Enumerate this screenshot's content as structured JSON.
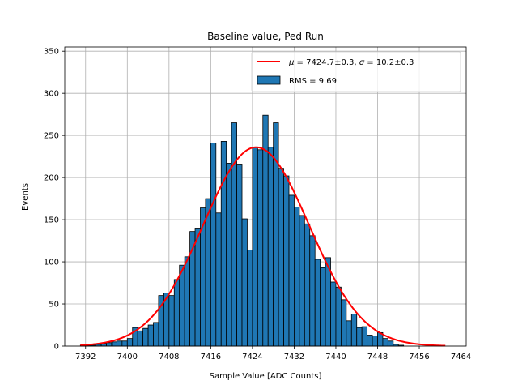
{
  "chart_data": {
    "type": "bar",
    "title": "Baseline value, Ped Run",
    "xlabel": "Sample Value [ADC Counts]",
    "ylabel": "Events",
    "xlim": [
      7388,
      7465
    ],
    "ylim": [
      0,
      355
    ],
    "xticks": [
      7392,
      7400,
      7408,
      7416,
      7424,
      7432,
      7440,
      7448,
      7456,
      7464
    ],
    "yticks": [
      0,
      50,
      100,
      150,
      200,
      250,
      300,
      350
    ],
    "grid": true,
    "legend_position": "top-right",
    "bar_color": "#1f77b4",
    "fit_color": "#ff0000",
    "bin_width": 1,
    "bins_start": 7391,
    "counts": [
      1,
      1,
      1,
      2,
      3,
      4,
      5,
      6,
      6,
      9,
      22,
      18,
      21,
      25,
      28,
      60,
      63,
      60,
      79,
      96,
      106,
      136,
      140,
      164,
      175,
      241,
      158,
      243,
      217,
      265,
      216,
      151,
      114,
      236,
      233,
      274,
      236,
      265,
      211,
      202,
      179,
      165,
      155,
      145,
      131,
      103,
      93,
      105,
      76,
      70,
      55,
      30,
      38,
      22,
      23,
      13,
      12,
      16,
      9,
      6,
      2,
      1
    ],
    "series": [
      {
        "name": "RMS = 9.69",
        "kind": "histogram",
        "rms": 9.69
      },
      {
        "name": "$\\mu = 7424.7\\pm0.3$, $\\sigma = 10.2\\pm0.3$",
        "kind": "gaussian_fit",
        "mu": 7424.7,
        "mu_err": 0.3,
        "sigma": 10.2,
        "sigma_err": 0.3,
        "amplitude": 236,
        "x_range": [
          7391,
          7461
        ]
      }
    ],
    "legend": {
      "fit_label_mu_sym": "μ",
      "fit_label_mu_val": " = 7424.7±0.3, ",
      "fit_label_sigma_sym": "σ",
      "fit_label_sigma_val": " = 10.2±0.3",
      "hist_label": "RMS = 9.69"
    }
  }
}
